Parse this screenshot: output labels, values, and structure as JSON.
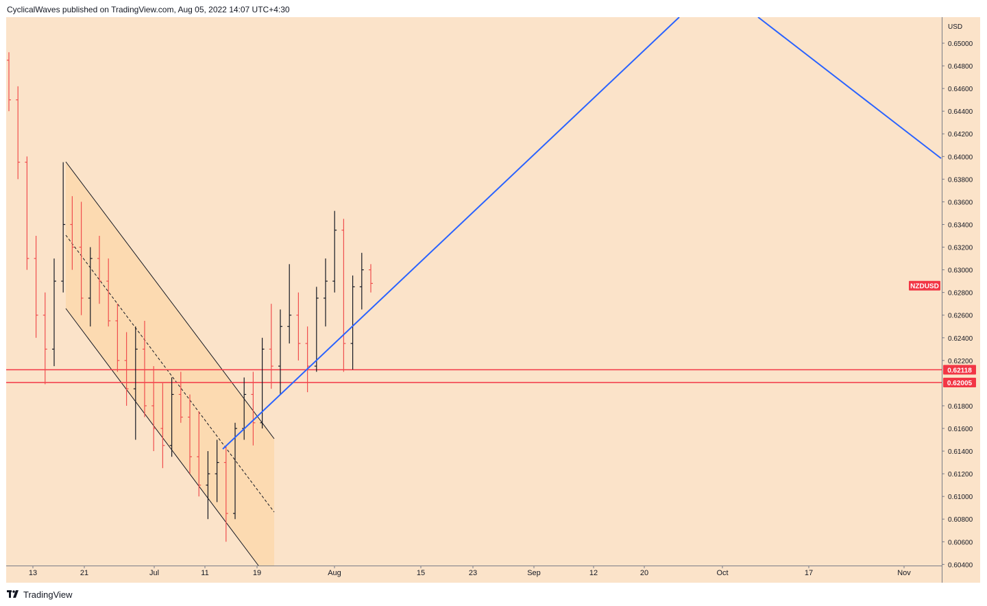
{
  "header": {
    "text": "CyclicalWaves published on TradingView.com, Aug 05, 2022 14:07 UTC+4:30"
  },
  "footer": {
    "brand": "TradingView"
  },
  "colors": {
    "background": "#fbe3c9",
    "channel_fill": "#fcd9b0",
    "candle_up": "#131722",
    "candle_down": "#f04d4d",
    "trendline": "#2962ff",
    "level_line": "#f23645",
    "tag": "#f23645"
  },
  "chart_data": {
    "type": "candlestick",
    "symbol": "NZDUSD",
    "currency": "USD",
    "yaxis": {
      "ticks": [
        "0.65000",
        "0.64800",
        "0.64600",
        "0.64400",
        "0.64200",
        "0.64000",
        "0.63800",
        "0.63600",
        "0.63400",
        "0.63200",
        "0.63000",
        "0.62800",
        "0.62600",
        "0.62400",
        "0.62200",
        "0.62118",
        "0.62005",
        "0.61800",
        "0.61600",
        "0.61400",
        "0.61200",
        "0.61000",
        "0.60800",
        "0.60600",
        "0.60400"
      ],
      "range": [
        0.6039,
        0.6523
      ]
    },
    "xaxis": {
      "labels": [
        "13",
        "21",
        "Jul",
        "11",
        "19",
        "Aug",
        "15",
        "23",
        "Sep",
        "12",
        "20",
        "Oct",
        "17",
        "Nov"
      ]
    },
    "horizontal_levels": [
      {
        "value": 0.62118,
        "label": "0.62118"
      },
      {
        "value": 0.62005,
        "label": "0.62005"
      }
    ],
    "symbol_tag": {
      "label": "NZDUSD",
      "value": 0.6286
    },
    "candles": [
      {
        "t": "Jun 10",
        "o": 0.6485,
        "h": 0.6492,
        "l": 0.644,
        "c": 0.645
      },
      {
        "t": "Jun 13",
        "o": 0.645,
        "h": 0.6462,
        "l": 0.638,
        "c": 0.6395
      },
      {
        "t": "Jun 14",
        "o": 0.6395,
        "h": 0.64,
        "l": 0.63,
        "c": 0.631
      },
      {
        "t": "Jun 15",
        "o": 0.631,
        "h": 0.633,
        "l": 0.624,
        "c": 0.626
      },
      {
        "t": "Jun 16",
        "o": 0.626,
        "h": 0.628,
        "l": 0.6199,
        "c": 0.623
      },
      {
        "t": "Jun 17",
        "o": 0.623,
        "h": 0.631,
        "l": 0.6215,
        "c": 0.629
      },
      {
        "t": "Jun 20",
        "o": 0.629,
        "h": 0.6395,
        "l": 0.628,
        "c": 0.634
      },
      {
        "t": "Jun 21",
        "o": 0.634,
        "h": 0.6365,
        "l": 0.63,
        "c": 0.632
      },
      {
        "t": "Jun 22",
        "o": 0.632,
        "h": 0.636,
        "l": 0.626,
        "c": 0.6275
      },
      {
        "t": "Jun 23",
        "o": 0.6275,
        "h": 0.632,
        "l": 0.625,
        "c": 0.631
      },
      {
        "t": "Jun 24",
        "o": 0.631,
        "h": 0.633,
        "l": 0.627,
        "c": 0.629
      },
      {
        "t": "Jun 27",
        "o": 0.629,
        "h": 0.631,
        "l": 0.625,
        "c": 0.6255
      },
      {
        "t": "Jun 28",
        "o": 0.6255,
        "h": 0.627,
        "l": 0.621,
        "c": 0.622
      },
      {
        "t": "Jun 29",
        "o": 0.622,
        "h": 0.6245,
        "l": 0.618,
        "c": 0.6195
      },
      {
        "t": "Jun 30",
        "o": 0.6195,
        "h": 0.625,
        "l": 0.615,
        "c": 0.623
      },
      {
        "t": "Jul 1",
        "o": 0.623,
        "h": 0.6255,
        "l": 0.617,
        "c": 0.618
      },
      {
        "t": "Jul 4",
        "o": 0.618,
        "h": 0.6215,
        "l": 0.614,
        "c": 0.616
      },
      {
        "t": "Jul 5",
        "o": 0.616,
        "h": 0.62,
        "l": 0.6125,
        "c": 0.6145
      },
      {
        "t": "Jul 6",
        "o": 0.6145,
        "h": 0.6205,
        "l": 0.6135,
        "c": 0.619
      },
      {
        "t": "Jul 7",
        "o": 0.619,
        "h": 0.621,
        "l": 0.6165,
        "c": 0.617
      },
      {
        "t": "Jul 8",
        "o": 0.617,
        "h": 0.619,
        "l": 0.612,
        "c": 0.6135
      },
      {
        "t": "Jul 11",
        "o": 0.6135,
        "h": 0.6175,
        "l": 0.61,
        "c": 0.611
      },
      {
        "t": "Jul 12",
        "o": 0.611,
        "h": 0.614,
        "l": 0.608,
        "c": 0.612
      },
      {
        "t": "Jul 13",
        "o": 0.612,
        "h": 0.615,
        "l": 0.6095,
        "c": 0.613
      },
      {
        "t": "Jul 14",
        "o": 0.613,
        "h": 0.6145,
        "l": 0.606,
        "c": 0.6085
      },
      {
        "t": "Jul 15",
        "o": 0.6085,
        "h": 0.6165,
        "l": 0.608,
        "c": 0.616
      },
      {
        "t": "Jul 18",
        "o": 0.616,
        "h": 0.6205,
        "l": 0.615,
        "c": 0.619
      },
      {
        "t": "Jul 19",
        "o": 0.619,
        "h": 0.621,
        "l": 0.6145,
        "c": 0.6165
      },
      {
        "t": "Jul 20",
        "o": 0.6165,
        "h": 0.624,
        "l": 0.616,
        "c": 0.623
      },
      {
        "t": "Jul 21",
        "o": 0.623,
        "h": 0.627,
        "l": 0.6195,
        "c": 0.6215
      },
      {
        "t": "Jul 22",
        "o": 0.6215,
        "h": 0.6265,
        "l": 0.619,
        "c": 0.625
      },
      {
        "t": "Jul 25",
        "o": 0.625,
        "h": 0.6305,
        "l": 0.6235,
        "c": 0.626
      },
      {
        "t": "Jul 26",
        "o": 0.626,
        "h": 0.628,
        "l": 0.622,
        "c": 0.6235
      },
      {
        "t": "Jul 27",
        "o": 0.6235,
        "h": 0.625,
        "l": 0.6192,
        "c": 0.6215
      },
      {
        "t": "Jul 28",
        "o": 0.6215,
        "h": 0.6285,
        "l": 0.621,
        "c": 0.6275
      },
      {
        "t": "Jul 29",
        "o": 0.6275,
        "h": 0.631,
        "l": 0.625,
        "c": 0.629
      },
      {
        "t": "Aug 1",
        "o": 0.629,
        "h": 0.6352,
        "l": 0.628,
        "c": 0.6335
      },
      {
        "t": "Aug 2",
        "o": 0.6335,
        "h": 0.6345,
        "l": 0.621,
        "c": 0.6235
      },
      {
        "t": "Aug 3",
        "o": 0.6235,
        "h": 0.6295,
        "l": 0.6212,
        "c": 0.6285
      },
      {
        "t": "Aug 4",
        "o": 0.6285,
        "h": 0.6315,
        "l": 0.6265,
        "c": 0.63
      },
      {
        "t": "Aug 5",
        "o": 0.63,
        "h": 0.6305,
        "l": 0.628,
        "c": 0.6288
      }
    ],
    "drawings": [
      {
        "type": "parallel_channel",
        "description": "descending channel with dashed midline"
      },
      {
        "type": "trendline",
        "from": {
          "t": "Jul 14",
          "v": 0.6139
        },
        "to": {
          "t": "Sep 28",
          "v": 0.6523
        }
      },
      {
        "type": "trendline",
        "from": {
          "t": "Oct 10",
          "v": 0.6523
        },
        "to": {
          "t": "Nov 8",
          "v": 0.64
        }
      },
      {
        "type": "horizontal_line",
        "value": 0.62118
      },
      {
        "type": "horizontal_line",
        "value": 0.62005
      }
    ]
  }
}
